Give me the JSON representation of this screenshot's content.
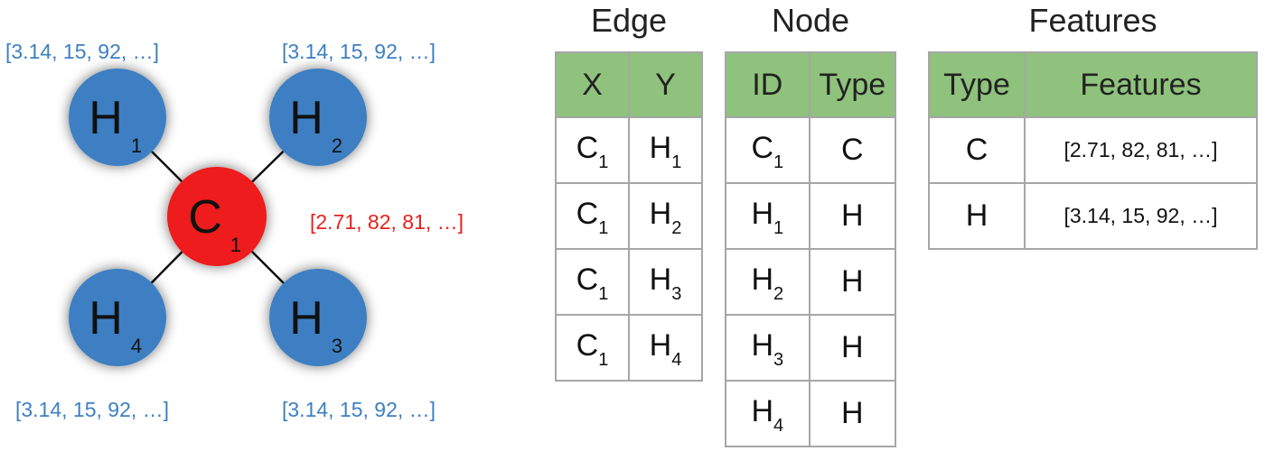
{
  "molecule": {
    "atoms": [
      {
        "id": "C1",
        "symbol": "C",
        "index": "1",
        "color": "#ee1c1c"
      },
      {
        "id": "H1",
        "symbol": "H",
        "index": "1",
        "color": "#3d7fc2"
      },
      {
        "id": "H2",
        "symbol": "H",
        "index": "2",
        "color": "#3d7fc2"
      },
      {
        "id": "H3",
        "symbol": "H",
        "index": "3",
        "color": "#3d7fc2"
      },
      {
        "id": "H4",
        "symbol": "H",
        "index": "4",
        "color": "#3d7fc2"
      }
    ],
    "bonds": [
      [
        "C1",
        "H1"
      ],
      [
        "C1",
        "H2"
      ],
      [
        "C1",
        "H3"
      ],
      [
        "C1",
        "H4"
      ]
    ],
    "labels": {
      "h1_features": "[3.14, 15, 92, …]",
      "h2_features": "[3.14, 15, 92, …]",
      "h3_features": "[3.14, 15, 92, …]",
      "h4_features": "[3.14, 15, 92, …]",
      "c1_features": "[2.71, 82, 81, …]"
    }
  },
  "colors": {
    "carbon": "#e8201c",
    "hydrogen": "#3d7fc2",
    "header_green": "#8fc27c",
    "grid": "#a6a6a6"
  },
  "edge_table": {
    "title": "Edge",
    "headers": [
      "X",
      "Y"
    ],
    "rows": [
      [
        {
          "sym": "C",
          "sub": "1"
        },
        {
          "sym": "H",
          "sub": "1"
        }
      ],
      [
        {
          "sym": "C",
          "sub": "1"
        },
        {
          "sym": "H",
          "sub": "2"
        }
      ],
      [
        {
          "sym": "C",
          "sub": "1"
        },
        {
          "sym": "H",
          "sub": "3"
        }
      ],
      [
        {
          "sym": "C",
          "sub": "1"
        },
        {
          "sym": "H",
          "sub": "4"
        }
      ]
    ]
  },
  "node_table": {
    "title": "Node",
    "headers": [
      "ID",
      "Type"
    ],
    "rows": [
      {
        "id": {
          "sym": "C",
          "sub": "1"
        },
        "type": "C"
      },
      {
        "id": {
          "sym": "H",
          "sub": "1"
        },
        "type": "H"
      },
      {
        "id": {
          "sym": "H",
          "sub": "2"
        },
        "type": "H"
      },
      {
        "id": {
          "sym": "H",
          "sub": "3"
        },
        "type": "H"
      },
      {
        "id": {
          "sym": "H",
          "sub": "4"
        },
        "type": "H"
      }
    ]
  },
  "features_table": {
    "title": "Features",
    "headers": [
      "Type",
      "Features"
    ],
    "rows": [
      {
        "type": "C",
        "features": "[2.71, 82, 81, …]"
      },
      {
        "type": "H",
        "features": "[3.14, 15, 92, …]"
      }
    ]
  }
}
